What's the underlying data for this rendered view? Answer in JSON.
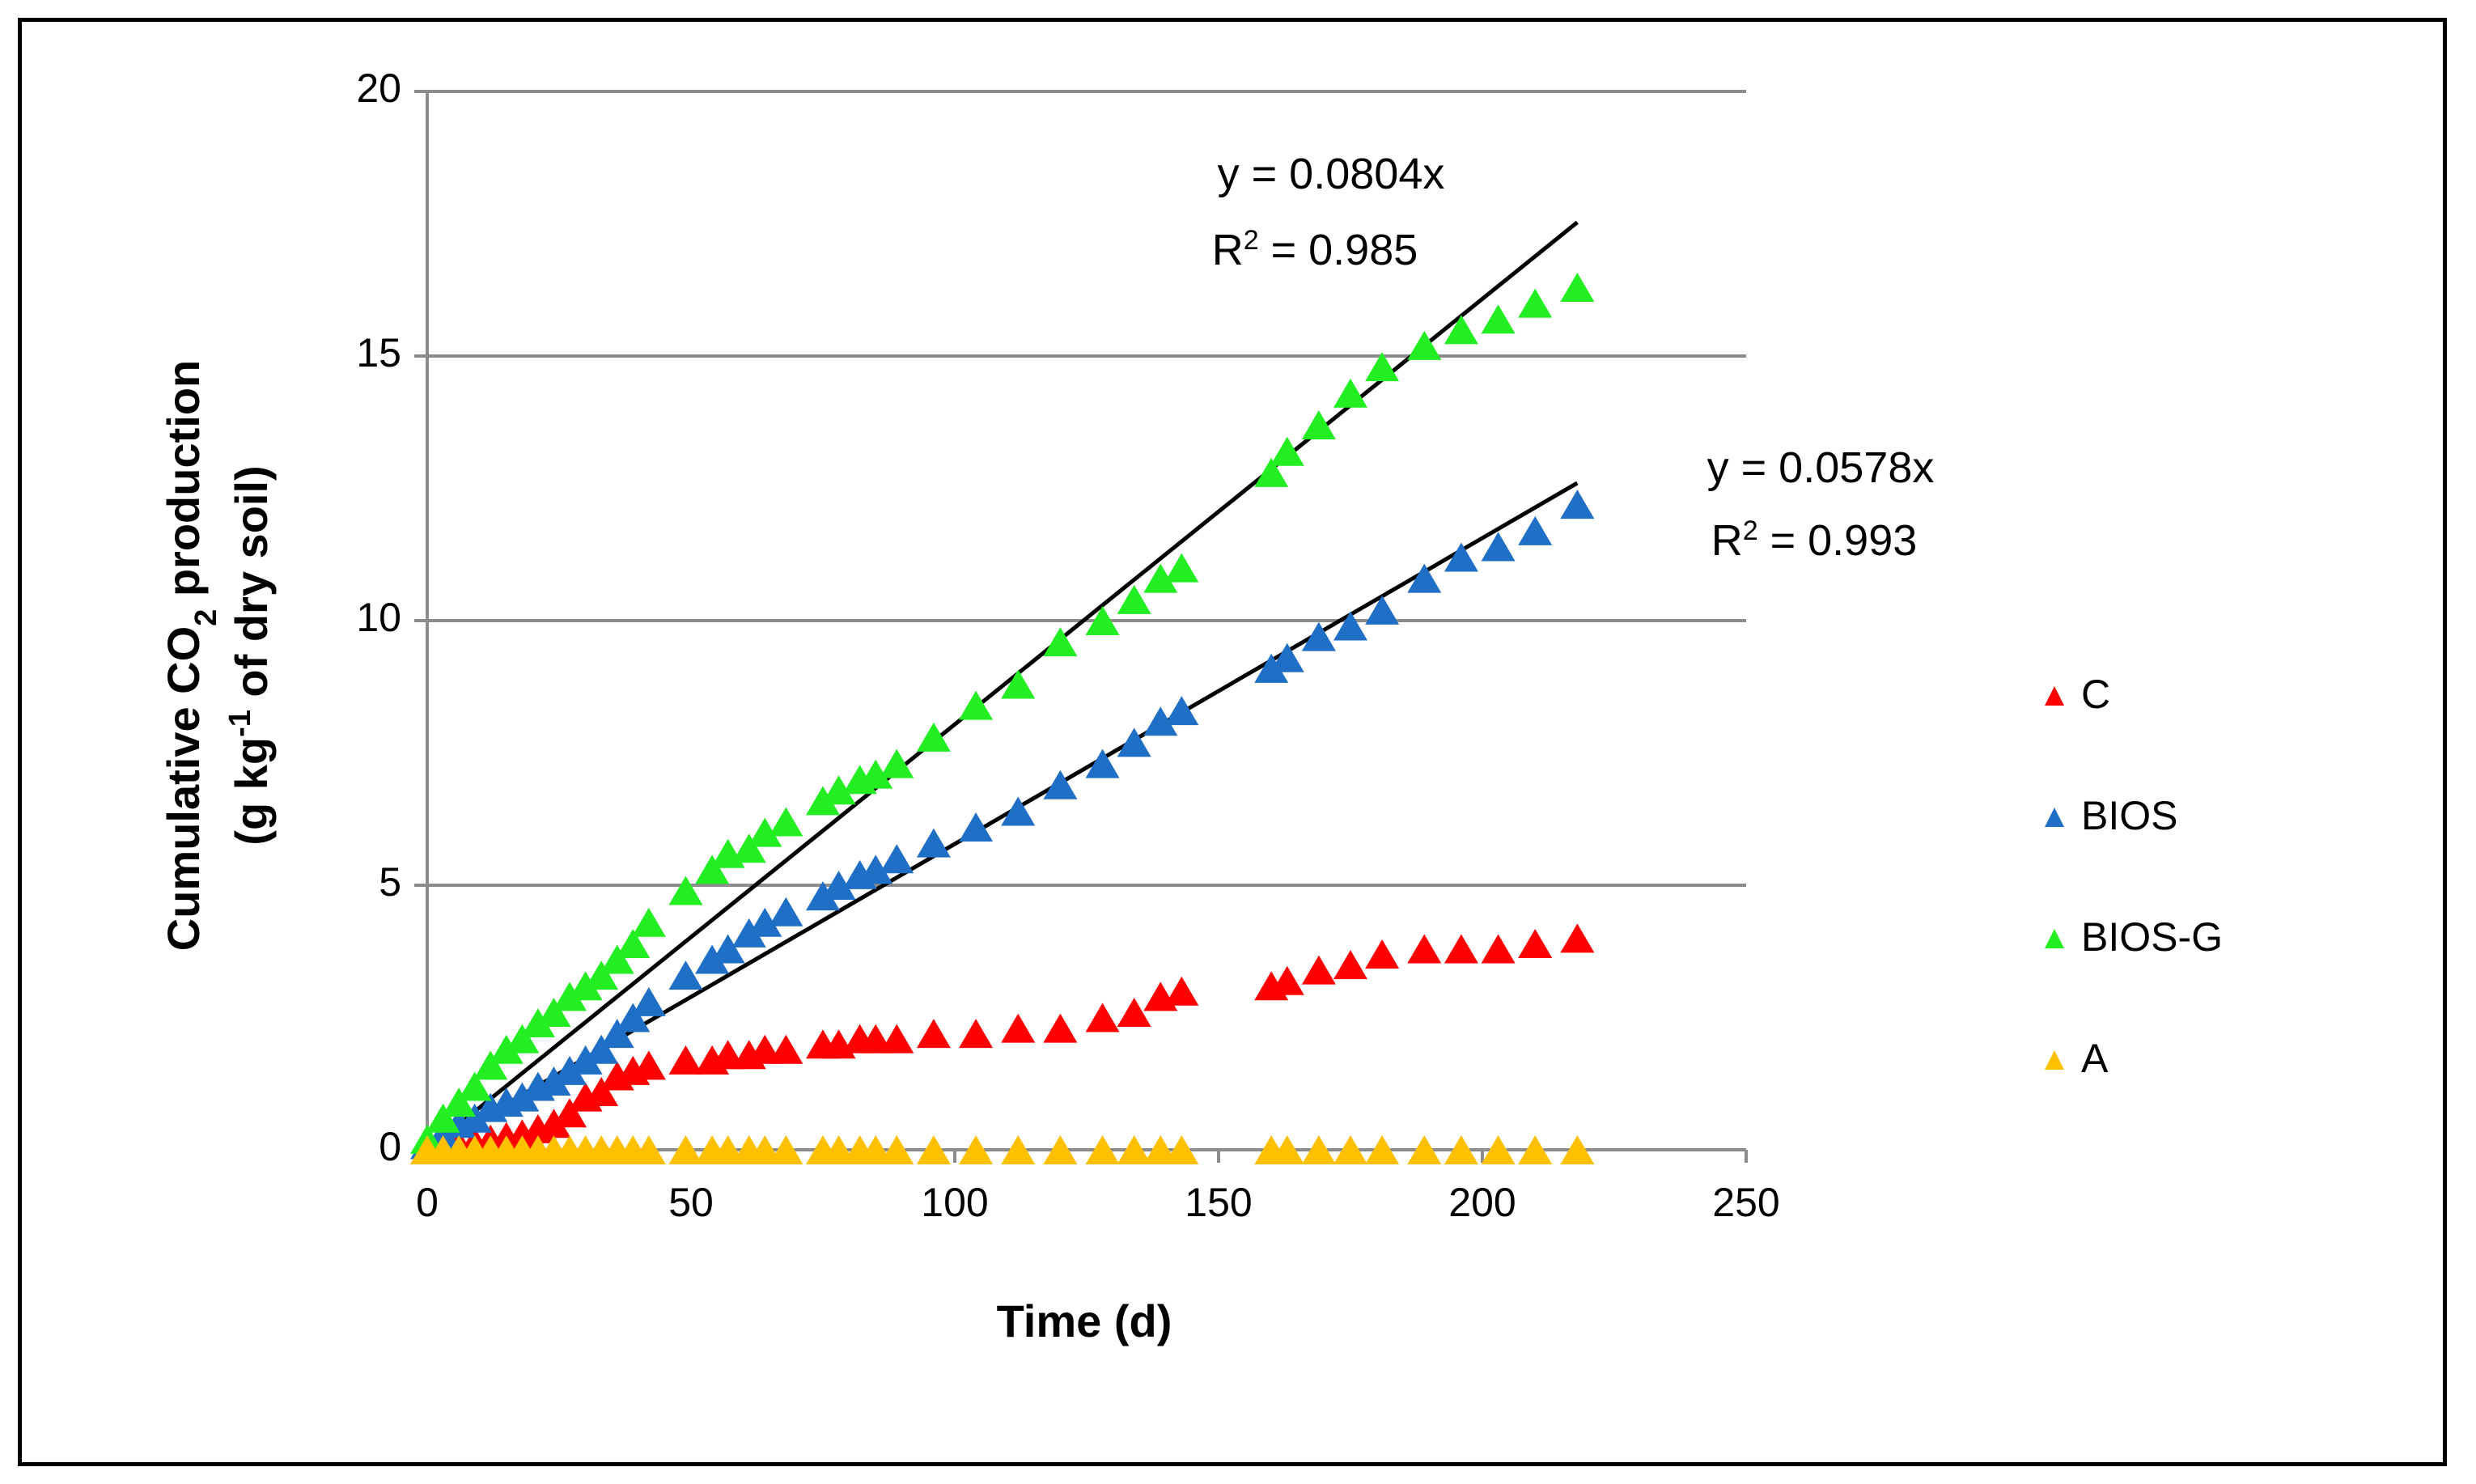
{
  "chart_data": {
    "type": "scatter",
    "title": "",
    "xlabel": "Time (d)",
    "ylabel_line1_pre": "Cumulative CO",
    "ylabel_line1_sub": "2",
    "ylabel_line1_post": " production",
    "ylabel_line2_pre": "(g kg",
    "ylabel_line2_sup": "-1",
    "ylabel_line2_post": " of dry soil)",
    "xlim": [
      0,
      250
    ],
    "ylim": [
      0,
      20
    ],
    "x_ticks": [
      "0",
      "50",
      "100",
      "150",
      "200",
      "250"
    ],
    "y_ticks": [
      "0",
      "5",
      "10",
      "15",
      "20"
    ],
    "y_gridlines": true,
    "legend_position": "right",
    "series": [
      {
        "name": "C",
        "color": "#ff0000",
        "marker": "triangle",
        "x": [
          0,
          3,
          6,
          9,
          12,
          15,
          18,
          21,
          24,
          27,
          30,
          33,
          36,
          39,
          42,
          49,
          54,
          57,
          61,
          64,
          68,
          75,
          78,
          82,
          85,
          89,
          96,
          104,
          112,
          120,
          128,
          134,
          139,
          143,
          160,
          163,
          169,
          175,
          181,
          189,
          196,
          203,
          210,
          218
        ],
        "y": [
          0.0,
          0.05,
          0.1,
          0.15,
          0.2,
          0.25,
          0.3,
          0.4,
          0.5,
          0.7,
          1.0,
          1.1,
          1.4,
          1.5,
          1.6,
          1.7,
          1.7,
          1.8,
          1.8,
          1.9,
          1.9,
          2.0,
          2.0,
          2.1,
          2.1,
          2.1,
          2.2,
          2.2,
          2.3,
          2.3,
          2.5,
          2.6,
          2.9,
          3.0,
          3.1,
          3.2,
          3.4,
          3.5,
          3.7,
          3.8,
          3.8,
          3.8,
          3.9,
          4.0
        ]
      },
      {
        "name": "BIOS",
        "color": "#1f6fc6",
        "marker": "triangle",
        "x": [
          0,
          3,
          6,
          9,
          12,
          15,
          18,
          21,
          24,
          27,
          30,
          33,
          36,
          39,
          42,
          49,
          54,
          57,
          61,
          64,
          68,
          75,
          78,
          82,
          85,
          89,
          96,
          104,
          112,
          120,
          128,
          134,
          139,
          143,
          160,
          163,
          169,
          175,
          181,
          189,
          196,
          203,
          210,
          218
        ],
        "y": [
          0.1,
          0.3,
          0.5,
          0.6,
          0.8,
          0.9,
          1.0,
          1.2,
          1.3,
          1.5,
          1.7,
          1.9,
          2.2,
          2.5,
          2.8,
          3.3,
          3.6,
          3.8,
          4.1,
          4.3,
          4.5,
          4.8,
          5.0,
          5.2,
          5.3,
          5.5,
          5.8,
          6.1,
          6.4,
          6.9,
          7.3,
          7.7,
          8.1,
          8.3,
          9.1,
          9.3,
          9.7,
          9.9,
          10.2,
          10.8,
          11.2,
          11.4,
          11.7,
          12.2
        ]
      },
      {
        "name": "BIOS-G",
        "color": "#22ee22",
        "marker": "triangle",
        "x": [
          0,
          3,
          6,
          9,
          12,
          15,
          18,
          21,
          24,
          27,
          30,
          33,
          36,
          39,
          42,
          49,
          54,
          57,
          61,
          64,
          68,
          75,
          78,
          82,
          85,
          89,
          96,
          104,
          112,
          120,
          128,
          134,
          139,
          143,
          160,
          163,
          169,
          175,
          181,
          189,
          196,
          203,
          210,
          218
        ],
        "y": [
          0.2,
          0.6,
          0.9,
          1.2,
          1.6,
          1.9,
          2.1,
          2.4,
          2.6,
          2.9,
          3.1,
          3.3,
          3.6,
          3.9,
          4.3,
          4.9,
          5.3,
          5.6,
          5.7,
          6.0,
          6.2,
          6.6,
          6.8,
          7.0,
          7.1,
          7.3,
          7.8,
          8.4,
          8.8,
          9.6,
          10.0,
          10.4,
          10.8,
          11.0,
          12.8,
          13.2,
          13.7,
          14.3,
          14.8,
          15.2,
          15.5,
          15.7,
          16.0,
          16.3
        ]
      },
      {
        "name": "A",
        "color": "#ffc000",
        "marker": "triangle",
        "x": [
          0,
          3,
          6,
          9,
          12,
          15,
          18,
          21,
          24,
          27,
          30,
          33,
          36,
          39,
          42,
          49,
          54,
          57,
          61,
          64,
          68,
          75,
          78,
          82,
          85,
          89,
          96,
          104,
          112,
          120,
          128,
          134,
          139,
          143,
          160,
          163,
          169,
          175,
          181,
          189,
          196,
          203,
          210,
          218
        ],
        "y": [
          0,
          0,
          0,
          0,
          0,
          0,
          0,
          0,
          0,
          0,
          0,
          0,
          0,
          0,
          0,
          0,
          0,
          0,
          0,
          0,
          0,
          0,
          0,
          0,
          0,
          0,
          0,
          0,
          0,
          0,
          0,
          0,
          0,
          0,
          0,
          0,
          0,
          0,
          0,
          0,
          0,
          0,
          0,
          0
        ]
      }
    ],
    "trendlines": [
      {
        "name": "BIOS-G trendline",
        "slope": 0.0804,
        "x_range": [
          0,
          218
        ],
        "equation": "y = 0.0804x",
        "r2_pre": "R",
        "r2_sup": "2",
        "r2_post": " = 0.985"
      },
      {
        "name": "BIOS trendline",
        "slope": 0.0578,
        "x_range": [
          0,
          218
        ],
        "equation": "y = 0.0578x",
        "r2_pre": "R",
        "r2_sup": "2",
        "r2_post": " = 0.993"
      }
    ]
  }
}
